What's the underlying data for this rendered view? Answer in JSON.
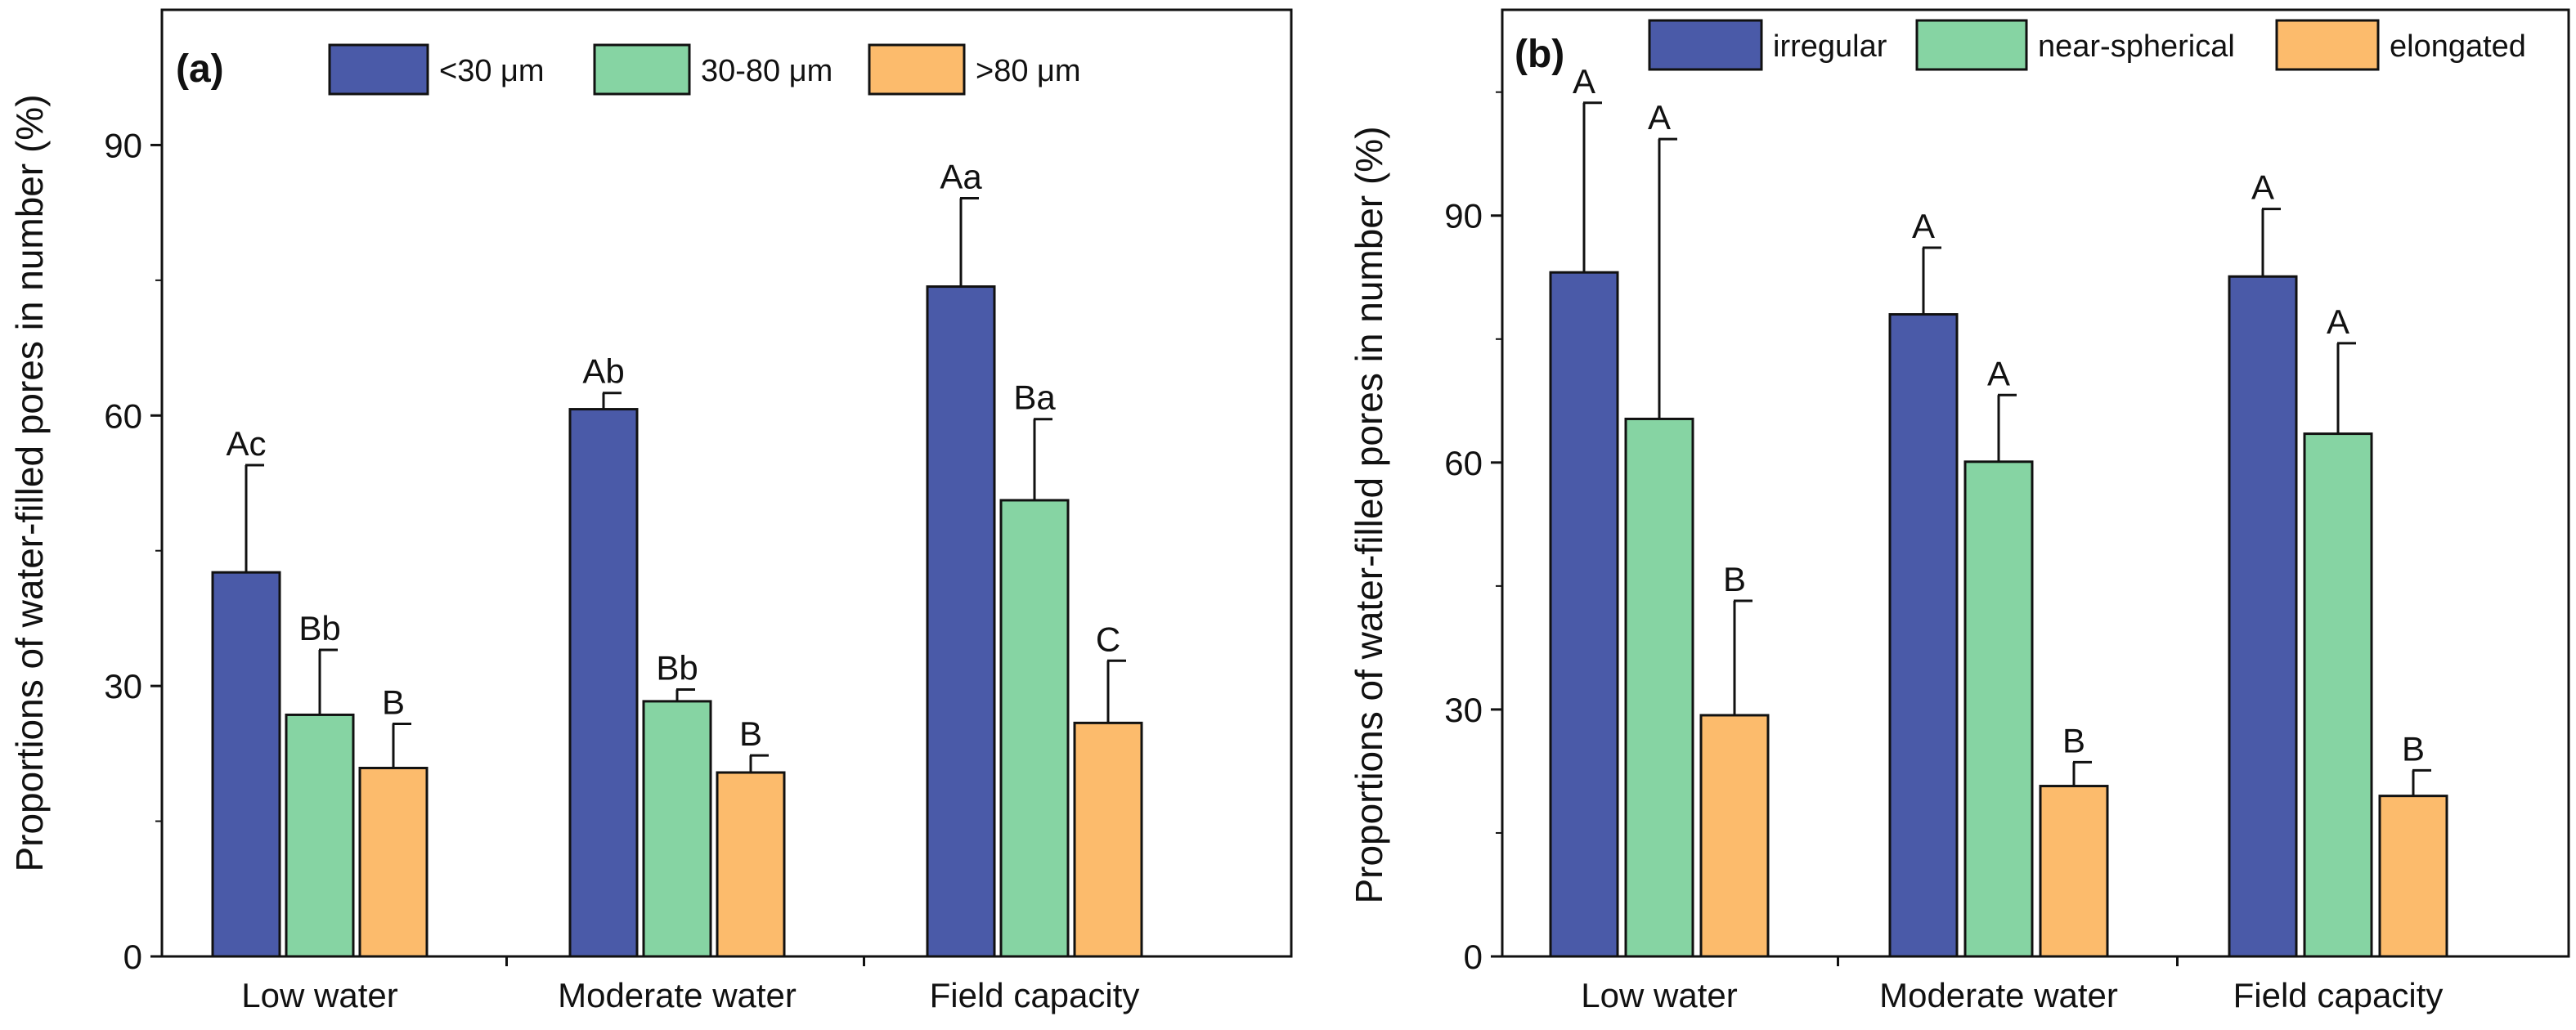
{
  "chart_data": [
    {
      "panel": "(a)",
      "type": "bar",
      "ylabel": "Proportions of water-filled pores in number (%)",
      "xlabel": "",
      "ylim": [
        0,
        105
      ],
      "yticks": [
        0,
        30,
        60,
        90
      ],
      "ytick_labels": [
        "0",
        "30",
        "60",
        "90"
      ],
      "grid": false,
      "legend_position": "top",
      "categories": [
        "Low water",
        "Moderate water",
        "Field capacity"
      ],
      "series": [
        {
          "name": "<30 μm",
          "color": "#4a5aa8",
          "values": [
            42.6,
            60.7,
            74.3
          ],
          "errors": [
            11.9,
            1.8,
            9.8
          ],
          "letters": [
            "Ac",
            "Ab",
            "Aa"
          ]
        },
        {
          "name": "30-80 μm",
          "color": "#86d4a3",
          "values": [
            26.8,
            28.3,
            50.6
          ],
          "errors": [
            7.2,
            1.3,
            9.0
          ],
          "letters": [
            "Bb",
            "Bb",
            "Ba"
          ]
        },
        {
          "name": ">80 μm",
          "color": "#fcbb6c",
          "values": [
            20.9,
            20.4,
            25.9
          ],
          "errors": [
            4.9,
            1.9,
            6.9
          ],
          "letters": [
            "B",
            "B",
            "C"
          ]
        }
      ]
    },
    {
      "panel": "(b)",
      "type": "bar",
      "ylabel": "Proportions of water-filled pores in number (%)",
      "xlabel": "",
      "ylim": [
        0,
        115
      ],
      "yticks": [
        0,
        30,
        60,
        90
      ],
      "ytick_labels": [
        "0",
        "30",
        "60",
        "90"
      ],
      "grid": false,
      "legend_position": "top",
      "categories": [
        "Low water",
        "Moderate water",
        "Field capacity"
      ],
      "series": [
        {
          "name": "irregular",
          "color": "#4a5aa8",
          "values": [
            83.1,
            78.0,
            82.6
          ],
          "errors": [
            20.6,
            8.1,
            8.2
          ],
          "letters": [
            "A",
            "A",
            "A"
          ]
        },
        {
          "name": "near-spherical",
          "color": "#86d4a3",
          "values": [
            65.3,
            60.1,
            63.5
          ],
          "errors": [
            34.0,
            8.1,
            11.0
          ],
          "letters": [
            "A",
            "A",
            "A"
          ]
        },
        {
          "name": "elongated",
          "color": "#fcbb6c",
          "values": [
            29.3,
            20.7,
            19.5
          ],
          "errors": [
            13.9,
            2.9,
            3.1
          ],
          "letters": [
            "B",
            "B",
            "B"
          ]
        }
      ]
    }
  ]
}
